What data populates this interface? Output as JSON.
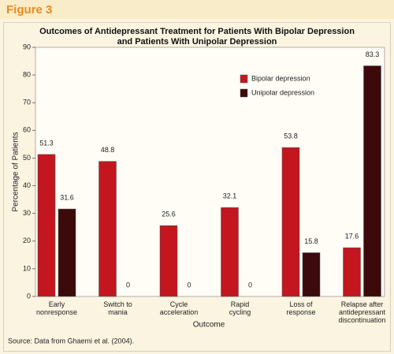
{
  "header": {
    "label": "Figure 3"
  },
  "chart_data": {
    "type": "bar",
    "title": "Outcomes of Antidepressant Treatment for Patients With Bipolar Depression\nand Patients With Unipolar Depression",
    "categories": [
      "Early\nnonresponse",
      "Switch to\nmania",
      "Cycle\nacceleration",
      "Rapid\ncycling",
      "Loss of\nresponse",
      "Relapse after\nantidepressant\ndiscontinuation"
    ],
    "series": [
      {
        "name": "Bipolar depression",
        "color": "#c3161f",
        "values": [
          51.3,
          48.8,
          25.6,
          32.1,
          53.8,
          17.6
        ]
      },
      {
        "name": "Unipolar depression",
        "color": "#3d0a0c",
        "values": [
          31.6,
          0,
          0,
          0,
          15.8,
          83.3
        ]
      }
    ],
    "xlabel": "Outcome",
    "ylabel": "Percentage of Patients",
    "ylim": [
      0,
      90
    ],
    "yticks": [
      0,
      10,
      20,
      30,
      40,
      50,
      60,
      70,
      80,
      90
    ],
    "legend": "upper-right",
    "grid": false,
    "source": "Source: Data from Ghaemi et al. (2004)."
  }
}
